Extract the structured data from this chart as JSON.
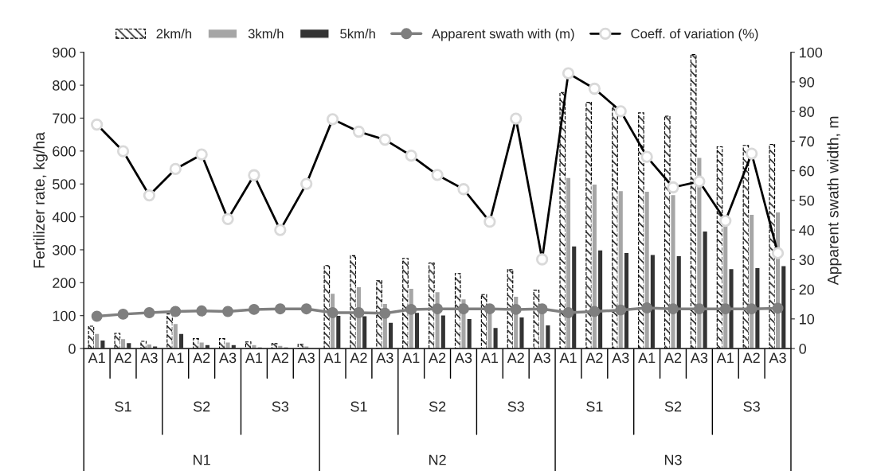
{
  "chart_data": {
    "type": "bar",
    "ylabel": "Fertilizer rate, kg/ha",
    "y2label": "Apparent swath width, m",
    "categories": [
      "A1",
      "A2",
      "A3",
      "A1",
      "A2",
      "A3",
      "A1",
      "A2",
      "A3",
      "A1",
      "A2",
      "A3",
      "A1",
      "A2",
      "A3",
      "A1",
      "A2",
      "A3",
      "A1",
      "A2",
      "A3",
      "A1",
      "A2",
      "A3",
      "A1",
      "A2",
      "A3"
    ],
    "series": [
      {
        "name": "2km/h",
        "color": "#000000",
        "values": [
          68,
          46,
          22,
          105,
          30,
          30,
          20,
          15,
          13,
          252,
          282,
          206,
          274,
          260,
          228,
          164,
          240,
          177,
          778,
          748,
          734,
          716,
          706,
          893,
          613,
          617,
          620
        ]
      },
      {
        "name": "3km/h",
        "color": "#a6a6a6",
        "values": [
          46,
          30,
          14,
          76,
          20,
          20,
          12,
          10,
          8,
          168,
          188,
          137,
          183,
          173,
          151,
          107,
          159,
          109,
          520,
          500,
          480,
          478,
          468,
          581,
          405,
          408,
          415
        ]
      },
      {
        "name": "5km/h",
        "color": "#333333",
        "values": [
          26,
          18,
          8,
          46,
          12,
          12,
          5,
          5,
          null,
          101,
          100,
          80,
          110,
          102,
          91,
          64,
          96,
          72,
          312,
          300,
          292,
          286,
          282,
          357,
          243,
          246,
          252
        ]
      },
      {
        "name": "Apparent swath with (m)",
        "type": "line",
        "axis": "y2",
        "color": "#7f7f7f",
        "marker": "circle",
        "values": [
          10.9,
          11.6,
          12.1,
          12.5,
          12.7,
          12.5,
          13.2,
          13.4,
          13.4,
          12.1,
          12.1,
          11.9,
          13.2,
          13.4,
          13.4,
          13.4,
          13.2,
          13.4,
          12.1,
          12.5,
          13.0,
          13.7,
          13.4,
          13.4,
          13.4,
          13.4,
          13.6
        ]
      },
      {
        "name": "Coeff. of variation (%)",
        "type": "line",
        "axis": "y2",
        "color": "#000000",
        "marker": "circle",
        "values": [
          75.6,
          66.6,
          51.7,
          60.6,
          65.5,
          43.7,
          58.5,
          40.0,
          55.6,
          77.4,
          73.2,
          70.5,
          65.1,
          58.6,
          53.8,
          42.8,
          77.6,
          30.1,
          92.9,
          87.7,
          80.1,
          64.7,
          54.4,
          56.4,
          43.1,
          65.8,
          32.2
        ]
      }
    ],
    "ylim": [
      0,
      900
    ],
    "yticks": [
      0,
      100,
      200,
      300,
      400,
      500,
      600,
      700,
      800,
      900
    ],
    "y2lim": [
      0,
      100
    ],
    "y2ticks": [
      0,
      10,
      20,
      30,
      40,
      50,
      60,
      70,
      80,
      90,
      100
    ],
    "grid": false,
    "legend": "top",
    "annotations": [
      "S1",
      "S2",
      "S3",
      "S1",
      "S2",
      "S3",
      "S1",
      "S2",
      "S3",
      "N1",
      "N2",
      "N3"
    ]
  }
}
